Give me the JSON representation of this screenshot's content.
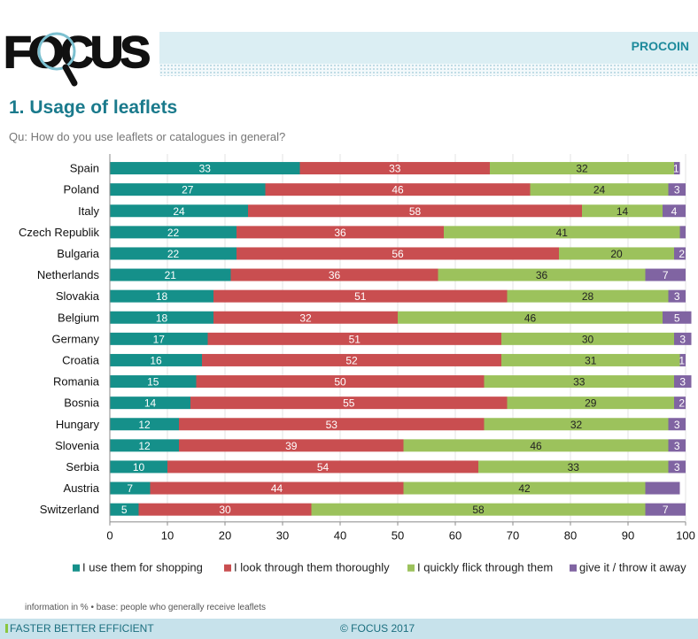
{
  "header": {
    "logo_text": "FOCUS",
    "brand": "PROCOIN"
  },
  "page": {
    "title": "1. Usage of leaflets",
    "question": "Qu: How do you use leaflets or catalogues in general?",
    "footnote": "information in % • base: people who generally receive leaflets"
  },
  "footer": {
    "left": "FASTER BETTER EFFICIENT",
    "center": "© FOCUS 2017"
  },
  "colors": {
    "shopping": "#15908a",
    "thorough": "#c94e50",
    "flick": "#9cc25c",
    "throw": "#8064a2",
    "accent": "#1a7a8c"
  },
  "chart_data": {
    "type": "bar",
    "orientation": "horizontal",
    "stacked": true,
    "title": "1. Usage of leaflets",
    "subtitle": "Qu: How do you use leaflets or catalogues in general?",
    "xlabel": "",
    "ylabel": "",
    "xlim": [
      0,
      100
    ],
    "xticks": [
      0,
      10,
      20,
      30,
      40,
      50,
      60,
      70,
      80,
      90,
      100
    ],
    "legend_position": "bottom",
    "categories": [
      "Spain",
      "Poland",
      "Italy",
      "Czech Republik",
      "Bulgaria",
      "Netherlands",
      "Slovakia",
      "Belgium",
      "Germany",
      "Croatia",
      "Romania",
      "Bosnia",
      "Hungary",
      "Slovenia",
      "Serbia",
      "Austria",
      "Switzerland"
    ],
    "series": [
      {
        "name": "I use them for shopping",
        "color": "#15908a",
        "label_color": "#ffffff",
        "values": [
          33,
          27,
          24,
          22,
          22,
          21,
          18,
          18,
          17,
          16,
          15,
          14,
          12,
          12,
          10,
          7,
          5
        ],
        "labels": [
          "33",
          "27",
          "24",
          "22",
          "22",
          "21",
          "18",
          "18",
          "17",
          "16",
          "15",
          "14",
          "12",
          "12",
          "10",
          "7",
          "5"
        ]
      },
      {
        "name": "I look through them thoroughly",
        "color": "#c94e50",
        "label_color": "#ffffff",
        "values": [
          33,
          46,
          58,
          36,
          56,
          36,
          51,
          32,
          51,
          52,
          50,
          55,
          53,
          39,
          54,
          44,
          30
        ],
        "labels": [
          "33",
          "46",
          "58",
          "36",
          "56",
          "36",
          "51",
          "32",
          "51",
          "52",
          "50",
          "55",
          "53",
          "39",
          "54",
          "44",
          "30"
        ]
      },
      {
        "name": "I quickly flick through them",
        "color": "#9cc25c",
        "label_color": "#222222",
        "values": [
          32,
          24,
          14,
          41,
          20,
          36,
          28,
          46,
          30,
          31,
          33,
          29,
          32,
          46,
          33,
          42,
          58
        ],
        "labels": [
          "32",
          "24",
          "14",
          "41",
          "20",
          "36",
          "28",
          "46",
          "30",
          "31",
          "33",
          "29",
          "32",
          "46",
          "33",
          "42",
          "58"
        ]
      },
      {
        "name": "give it / throw it away",
        "color": "#8064a2",
        "label_color": "#ffffff",
        "values": [
          1,
          3,
          4,
          1,
          2,
          7,
          3,
          5,
          3,
          1,
          3,
          2,
          3,
          3,
          3,
          6,
          7
        ],
        "labels": [
          "1",
          "3",
          "4",
          "",
          "2",
          "7",
          "3",
          "5",
          "3",
          "1",
          "3",
          "2",
          "3",
          "3",
          "3",
          "",
          "7"
        ]
      }
    ]
  }
}
